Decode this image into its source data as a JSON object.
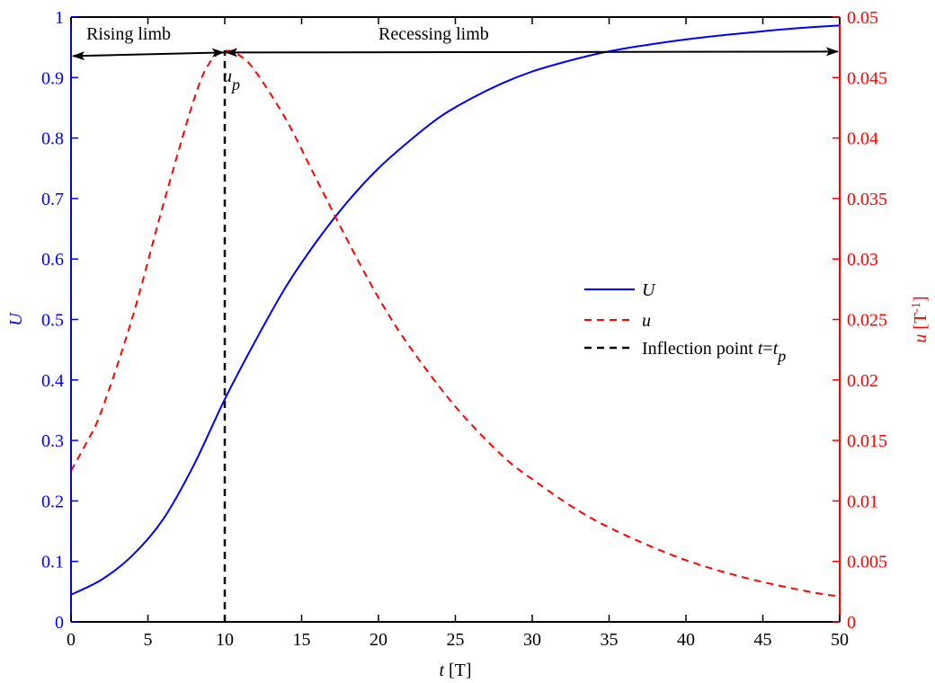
{
  "chart_data": {
    "type": "line",
    "x_axis": {
      "label_var": "t",
      "label_unit": " [T]",
      "range": [
        0,
        50
      ],
      "ticks": [
        0,
        5,
        10,
        15,
        20,
        25,
        30,
        35,
        40,
        45,
        50
      ],
      "tick_labels": [
        "0",
        "5",
        "10",
        "15",
        "20",
        "25",
        "30",
        "35",
        "40",
        "45",
        "50"
      ]
    },
    "y_axis_left": {
      "label": "U",
      "range": [
        0,
        1
      ],
      "ticks": [
        0,
        0.1,
        0.2,
        0.3,
        0.4,
        0.5,
        0.6,
        0.7,
        0.8,
        0.9,
        1
      ],
      "tick_labels": [
        "0",
        "0.1",
        "0.2",
        "0.3",
        "0.4",
        "0.5",
        "0.6",
        "0.7",
        "0.8",
        "0.9",
        "1"
      ],
      "color": "#0000ff"
    },
    "y_axis_right": {
      "label_var": "u",
      "label_unit_base": " [T",
      "label_unit_exp": "-1",
      "label_unit_close": "]",
      "range": [
        0,
        0.05
      ],
      "ticks": [
        0,
        0.005,
        0.01,
        0.015,
        0.02,
        0.025,
        0.03,
        0.035,
        0.04,
        0.045,
        0.05
      ],
      "tick_labels": [
        "0",
        "0.005",
        "0.01",
        "0.015",
        "0.02",
        "0.025",
        "0.03",
        "0.035",
        "0.04",
        "0.045",
        "0.05"
      ],
      "color": "#ff0000"
    },
    "series": [
      {
        "name": "U",
        "axis": "left",
        "color": "#0000ff",
        "style": "solid",
        "x": [
          0,
          2,
          4,
          6,
          8,
          10,
          12,
          14,
          16,
          18,
          20,
          22,
          24,
          26,
          28,
          30,
          32,
          34,
          36,
          38,
          40,
          42,
          44,
          46,
          48,
          50
        ],
        "y": [
          0.045,
          0.07,
          0.11,
          0.17,
          0.26,
          0.368,
          0.465,
          0.555,
          0.63,
          0.695,
          0.75,
          0.795,
          0.835,
          0.865,
          0.89,
          0.91,
          0.925,
          0.938,
          0.948,
          0.956,
          0.963,
          0.969,
          0.974,
          0.979,
          0.983,
          0.986
        ]
      },
      {
        "name": "u",
        "axis": "right",
        "color": "#ff0000",
        "style": "dashed",
        "x": [
          0,
          1,
          2,
          4,
          6,
          8,
          9,
          10,
          11,
          12,
          14,
          16,
          18,
          20,
          22,
          25,
          28,
          30,
          33,
          36,
          40,
          44,
          48,
          50
        ],
        "y": [
          0.0125,
          0.0148,
          0.0175,
          0.0252,
          0.0345,
          0.0432,
          0.0462,
          0.0472,
          0.0468,
          0.0455,
          0.0415,
          0.0365,
          0.0315,
          0.0268,
          0.0228,
          0.0178,
          0.0138,
          0.0118,
          0.0092,
          0.0072,
          0.0051,
          0.0036,
          0.0025,
          0.0021
        ]
      },
      {
        "name": "Inflection point t=tp",
        "axis": "left",
        "color": "#000000",
        "style": "dashed",
        "x": [
          10,
          10
        ],
        "y": [
          0,
          0.945
        ]
      }
    ],
    "legend": {
      "placement": "center-right",
      "entries": [
        {
          "text": "U",
          "color": "#0000ff",
          "style": "solid"
        },
        {
          "text": "u",
          "color": "#ff0000",
          "style": "dashed"
        },
        {
          "text": "Inflection point ",
          "var1": "t",
          "eq": "=",
          "var2": "t",
          "sub": "p",
          "color": "#000000",
          "style": "dashed"
        }
      ]
    },
    "annotations": {
      "rising_limb": {
        "text": "Rising limb",
        "x_range": [
          0,
          10
        ],
        "y": 0.94
      },
      "recessing_limb": {
        "text": "Recessing limb",
        "x_range": [
          10,
          50
        ],
        "y": 0.94
      },
      "peak_label": {
        "var": "u",
        "sub": "p",
        "x": 10,
        "y": 0.9
      }
    },
    "grid": false
  }
}
